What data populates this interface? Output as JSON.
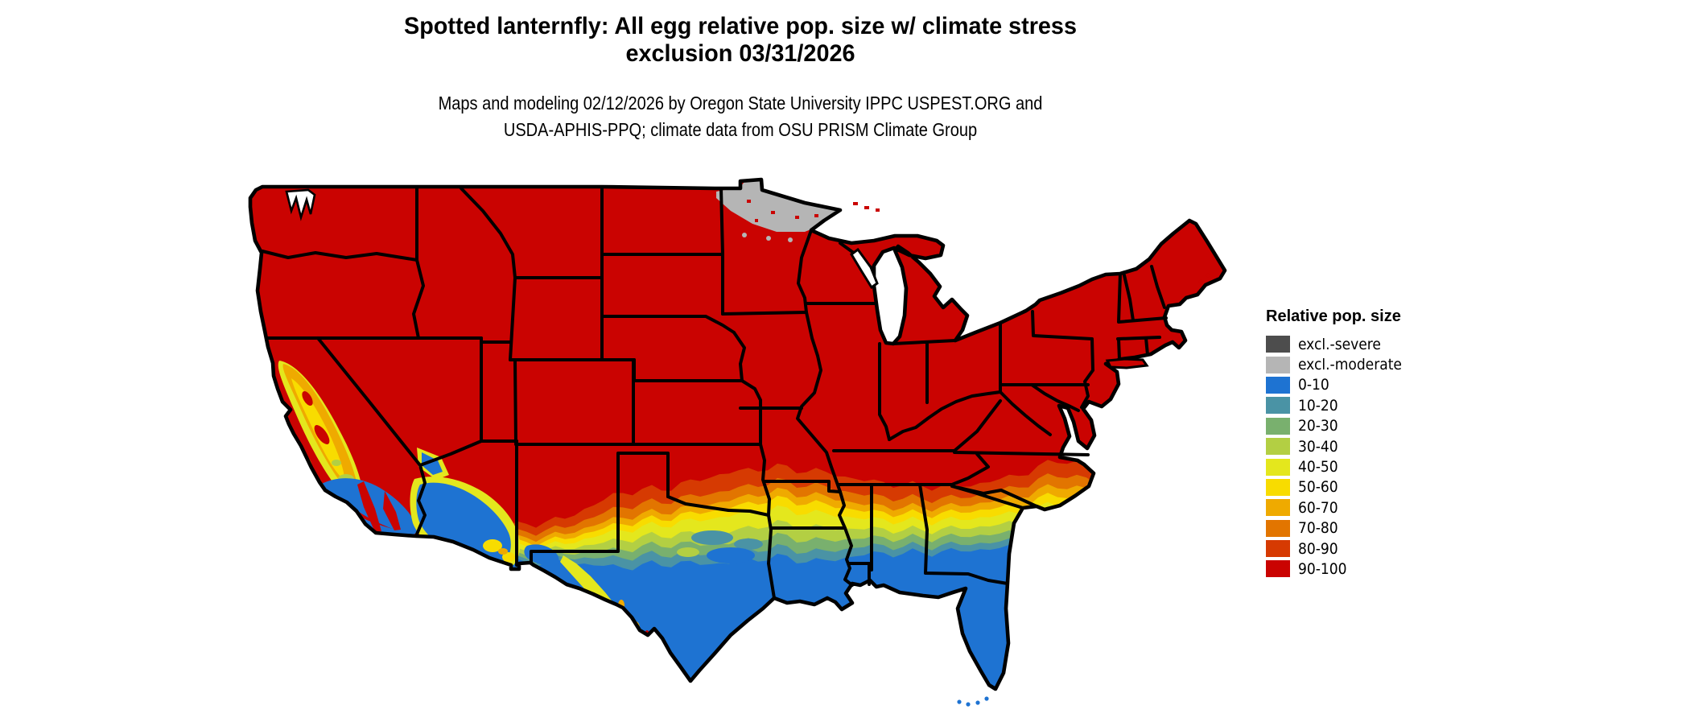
{
  "title": {
    "line1": "Spotted lanternfly: All egg relative pop. size w/ climate stress",
    "line2": "exclusion 03/31/2026"
  },
  "subtitle": {
    "line1": "Maps and modeling 02/12/2026 by Oregon State University IPPC USPEST.ORG and",
    "line2": "USDA-APHIS-PPQ; climate data from OSU PRISM Climate Group"
  },
  "legend": {
    "title": "Relative pop. size",
    "items": [
      {
        "key": "exclSevere",
        "label": "excl.-severe",
        "color": "#4d4d4d"
      },
      {
        "key": "exclModerate",
        "label": "excl.-moderate",
        "color": "#b5b5b5"
      },
      {
        "key": "c0",
        "label": "0-10",
        "color": "#1e73d2"
      },
      {
        "key": "c10",
        "label": "10-20",
        "color": "#4a93a5"
      },
      {
        "key": "c20",
        "label": "20-30",
        "color": "#79b06e"
      },
      {
        "key": "c30",
        "label": "30-40",
        "color": "#b3cf43"
      },
      {
        "key": "c40",
        "label": "40-50",
        "color": "#e4e71d"
      },
      {
        "key": "c50",
        "label": "50-60",
        "color": "#f8dc00"
      },
      {
        "key": "c60",
        "label": "60-70",
        "color": "#efaa00"
      },
      {
        "key": "c70",
        "label": "70-80",
        "color": "#e27500"
      },
      {
        "key": "c80",
        "label": "80-90",
        "color": "#d63a02"
      },
      {
        "key": "c90",
        "label": "90-100",
        "color": "#ca0301"
      }
    ]
  },
  "map": {
    "type": "choropleth_map",
    "region_shown": "Contiguous United States with state boundaries",
    "regions": [
      {
        "area": "Most of the contiguous US (West, Plains, Midwest, Northeast, mid-South)",
        "value": "90-100"
      },
      {
        "area": "Northern Minnesota border strip / Arrowhead",
        "value": "excl.-moderate"
      },
      {
        "area": "South Texas, Gulf Coast, Louisiana, southern Mississippi/Alabama/Georgia, all Florida",
        "value": "0-10"
      },
      {
        "area": "Central Texas through Oklahoma border and across the Deep South to the Carolinas",
        "value": "east-west banded gradient 10-20 through 80-90"
      },
      {
        "area": "California Central Valley and central coast",
        "value": "40-70 (yellow-orange)"
      },
      {
        "area": "Southern California interior and southern Arizona deserts",
        "value": "0-10 with 40-60 yellow fringe"
      },
      {
        "area": "North Carolina Outer Banks coastal fringe",
        "value": "60-80"
      }
    ]
  }
}
